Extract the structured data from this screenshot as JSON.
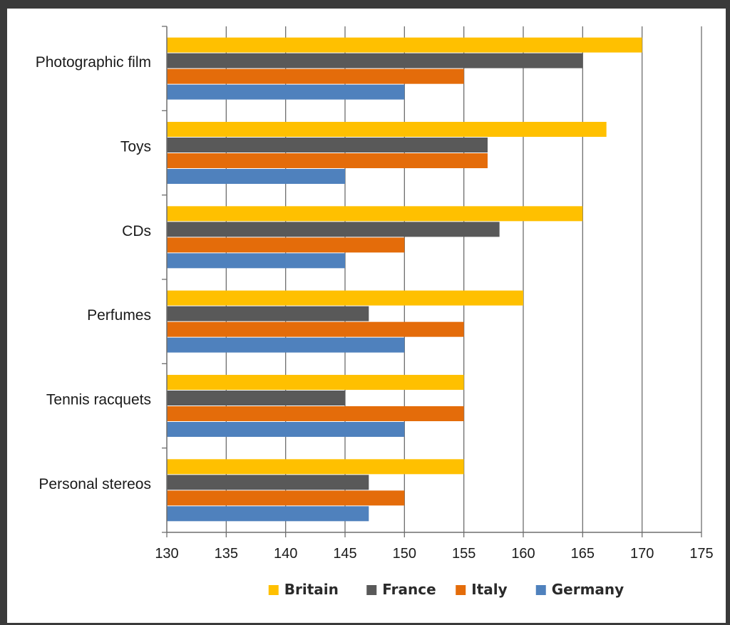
{
  "chart_data": {
    "type": "bar",
    "orientation": "horizontal",
    "title": "",
    "xlabel": "",
    "ylabel": "",
    "xlim": [
      130,
      175
    ],
    "xticks": [
      130,
      135,
      140,
      145,
      150,
      155,
      160,
      165,
      170,
      175
    ],
    "grid": true,
    "legend_position": "bottom",
    "categories": [
      "Photographic film",
      "Toys",
      "CDs",
      "Perfumes",
      "Tennis racquets",
      "Personal stereos"
    ],
    "series": [
      {
        "name": "Britain",
        "color": "#FFC000",
        "values": [
          170,
          167,
          165,
          160,
          155,
          155
        ]
      },
      {
        "name": "France",
        "color": "#595959",
        "values": [
          165,
          157,
          158,
          147,
          145,
          147
        ]
      },
      {
        "name": "Italy",
        "color": "#E46C0A",
        "values": [
          155,
          157,
          150,
          155,
          155,
          150
        ]
      },
      {
        "name": "Germany",
        "color": "#4F81BD",
        "values": [
          150,
          145,
          145,
          150,
          150,
          147
        ]
      }
    ]
  }
}
